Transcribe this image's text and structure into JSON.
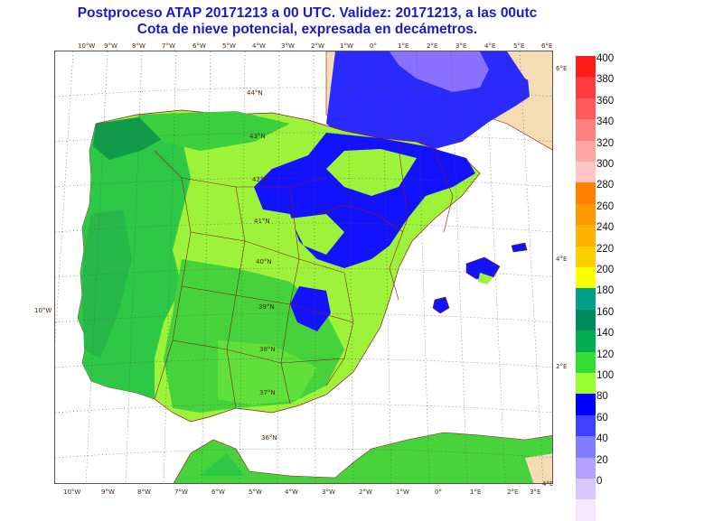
{
  "title_line1": "Postproceso ATAP 20171213 a 00 UTC. Validez: 20171213, a las 00utc",
  "title_line2": "Cota de nieve potencial, expresada en decámetros.",
  "colorbar": {
    "labels": [
      "400",
      "380",
      "360",
      "340",
      "320",
      "300",
      "280",
      "260",
      "240",
      "220",
      "200",
      "180",
      "160",
      "140",
      "120",
      "100",
      "80",
      "60",
      "40",
      "20",
      "0"
    ],
    "colors": [
      "#ff1a1a",
      "#ff3b3b",
      "#ff5a5a",
      "#ff7f7f",
      "#ffa3a3",
      "#ffc6c6",
      "#ff8000",
      "#ff9900",
      "#ffb300",
      "#ffd000",
      "#ffff00",
      "#00a08a",
      "#008b5a",
      "#00b050",
      "#33dd33",
      "#99ff33",
      "#0000ff",
      "#4040ff",
      "#8080ff",
      "#b3a0ff",
      "#d9c8ff",
      "#f7e6ff"
    ]
  },
  "grid_labels": {
    "bottom": [
      "10°W",
      "9°W",
      "8°W",
      "7°W",
      "6°W",
      "5°W",
      "4°W",
      "3°W",
      "2°W",
      "1°W",
      "0°",
      "1°E",
      "2°E",
      "3°E",
      "4°E"
    ],
    "top": [
      "10°W",
      "9°W",
      "8°W",
      "7°W",
      "6°W",
      "5°W",
      "4°W",
      "3°W",
      "2°W",
      "1°W",
      "0°",
      "1°E",
      "2°E",
      "3°E",
      "4°E",
      "5°E",
      "6°E"
    ],
    "inner": [
      "44°N",
      "43°N",
      "42°N",
      "41°N",
      "40°N",
      "39°N",
      "38°N",
      "37°N",
      "36°N"
    ],
    "right": [
      "6°E",
      "4°E",
      "2°E"
    ],
    "left": [
      "10°W"
    ]
  },
  "colors": {
    "title": "#1a1acc",
    "sea": "#ffffff",
    "france": "#f5dcb4",
    "border": "#8b1a1a",
    "graticule": "#555555"
  }
}
